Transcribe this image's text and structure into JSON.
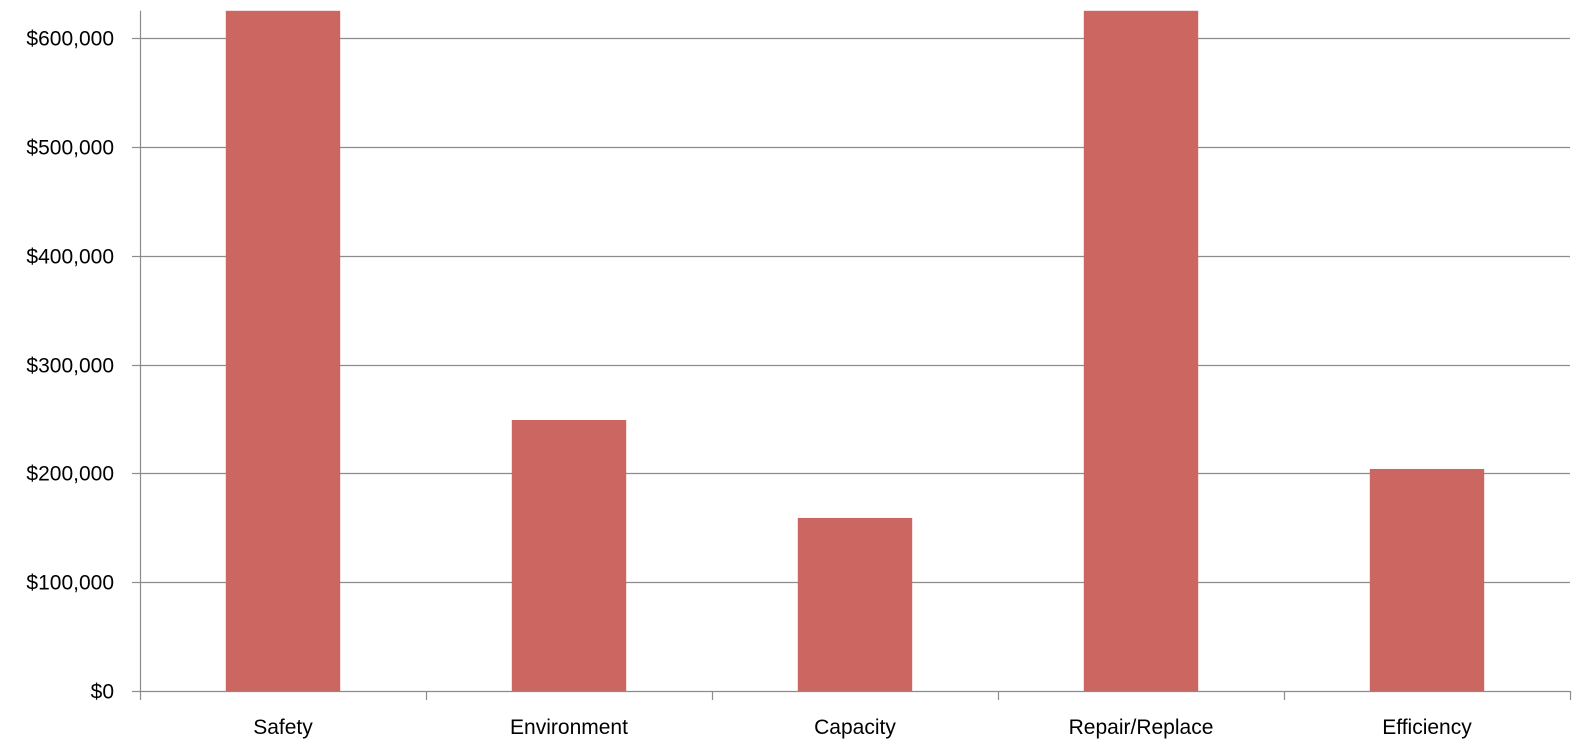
{
  "chart_data": {
    "type": "bar",
    "categories": [
      "Safety",
      "Environment",
      "Capacity",
      "Repair/Replace",
      "Efficiency"
    ],
    "values": [
      625000,
      249000,
      159000,
      625000,
      204000
    ],
    "ylim": [
      0,
      625000
    ],
    "yticks": [
      0,
      100000,
      200000,
      300000,
      400000,
      500000,
      600000
    ],
    "ytick_labels": [
      "$0",
      "$100,000",
      "$200,000",
      "$300,000",
      "$400,000",
      "$500,000",
      "$600,000"
    ],
    "grid": true,
    "legend": "none",
    "colors": {
      "bar": "#CC6660",
      "grid": "#8C8C8C",
      "axis": "#8C8C8C",
      "text": "#000000"
    }
  }
}
